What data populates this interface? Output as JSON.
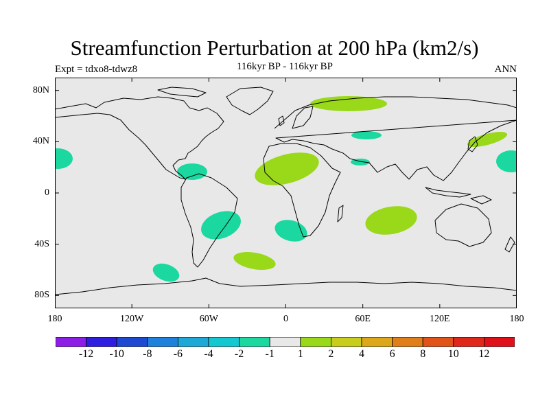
{
  "title": "Streamfunction Perturbation at 200 hPa (km2/s)",
  "subtitle": "116kyr BP - 116kyr BP",
  "experiment": "Expt = tdxo8-tdwz8",
  "season": "ANN",
  "lat_labels": [
    "80N",
    "40N",
    "0",
    "40S",
    "80S"
  ],
  "lat_values": [
    80,
    40,
    0,
    -40,
    -80
  ],
  "lon_labels": [
    "180",
    "120W",
    "60W",
    "0",
    "60E",
    "120E",
    "180"
  ],
  "lon_values": [
    -180,
    -120,
    -60,
    0,
    60,
    120,
    180
  ],
  "map_extent": {
    "lon": [
      -180,
      180
    ],
    "lat": [
      -90,
      90
    ]
  },
  "colorbar": {
    "labels": [
      "-12",
      "-10",
      "-8",
      "-6",
      "-4",
      "-2",
      "-1",
      "1",
      "2",
      "4",
      "6",
      "8",
      "10",
      "12"
    ],
    "colors": [
      "#8c1ee6",
      "#2f1ee0",
      "#1e4ad2",
      "#1e82dc",
      "#1ea8d8",
      "#14c8d2",
      "#1ad8a0",
      "#e8e8e8",
      "#9ad81a",
      "#c8cc1a",
      "#dca81a",
      "#e07e1a",
      "#e0541a",
      "#e0281a",
      "#e0101a"
    ]
  },
  "colors": {
    "background_field": "#e8e8e8",
    "positive_contour": "#9ad81a",
    "negative_contour": "#1ad8a0",
    "coastline": "#000000"
  }
}
